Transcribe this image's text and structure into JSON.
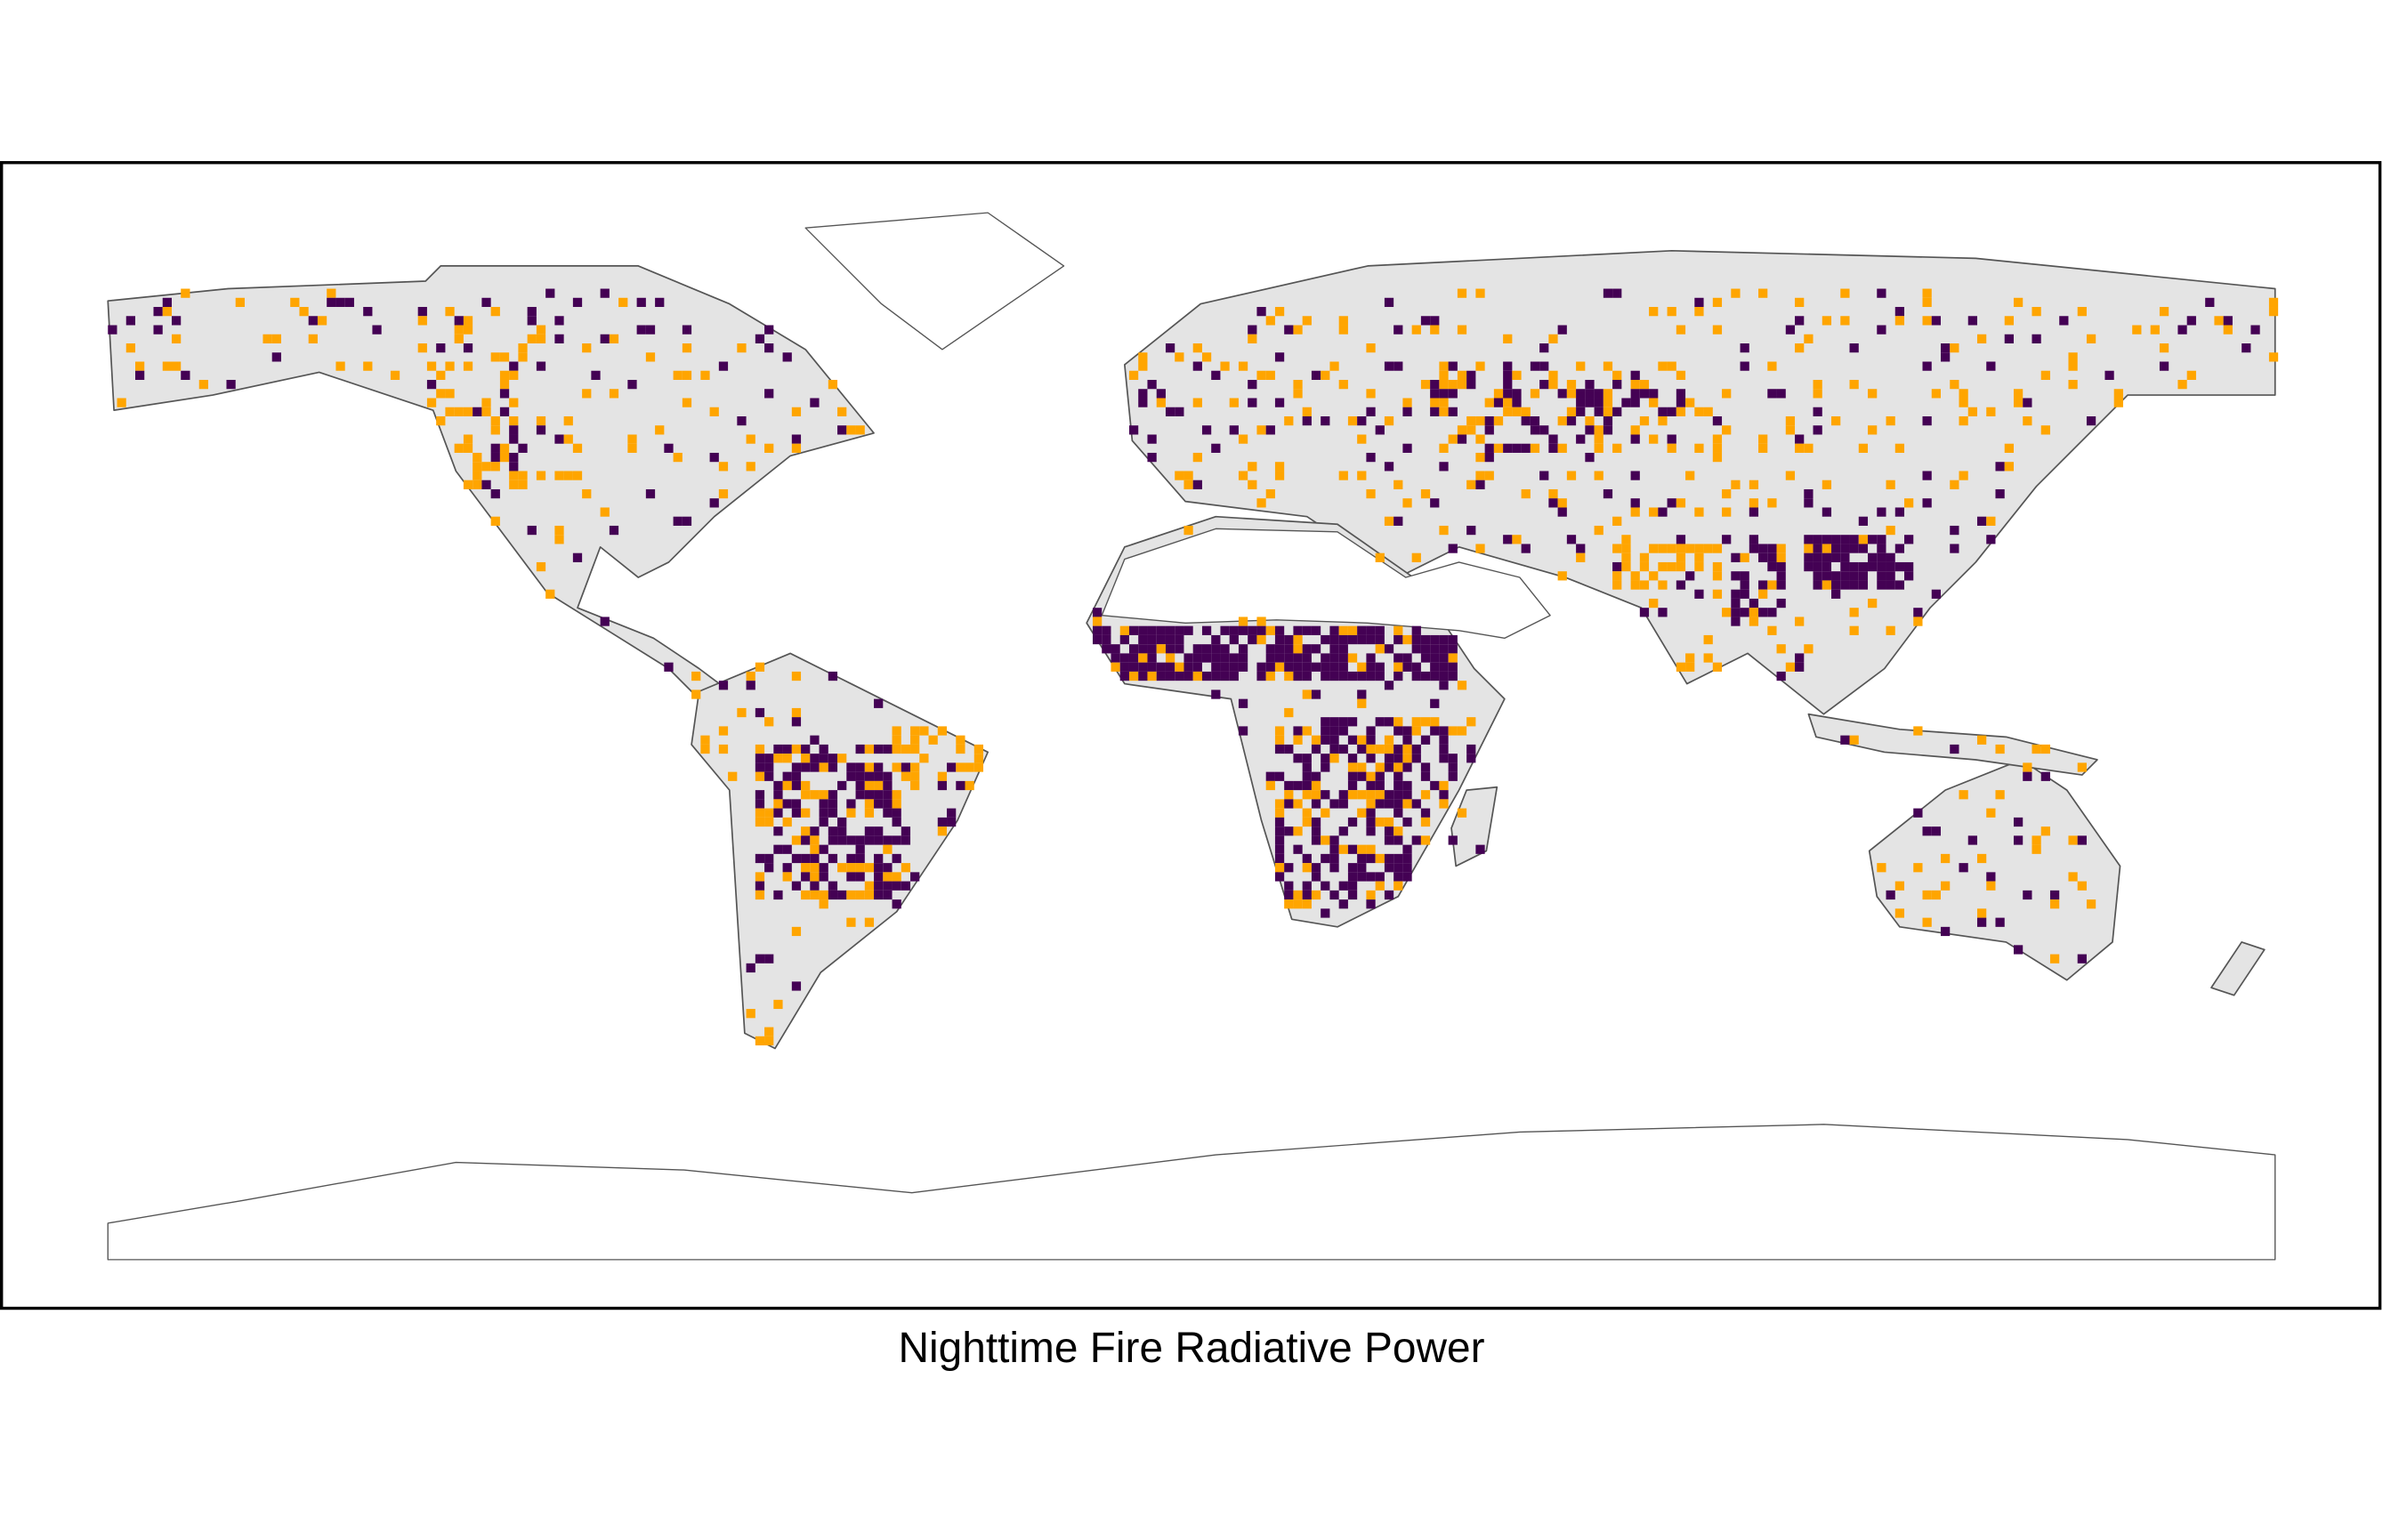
{
  "caption": "Nighttime Fire Radiative Power"
}
